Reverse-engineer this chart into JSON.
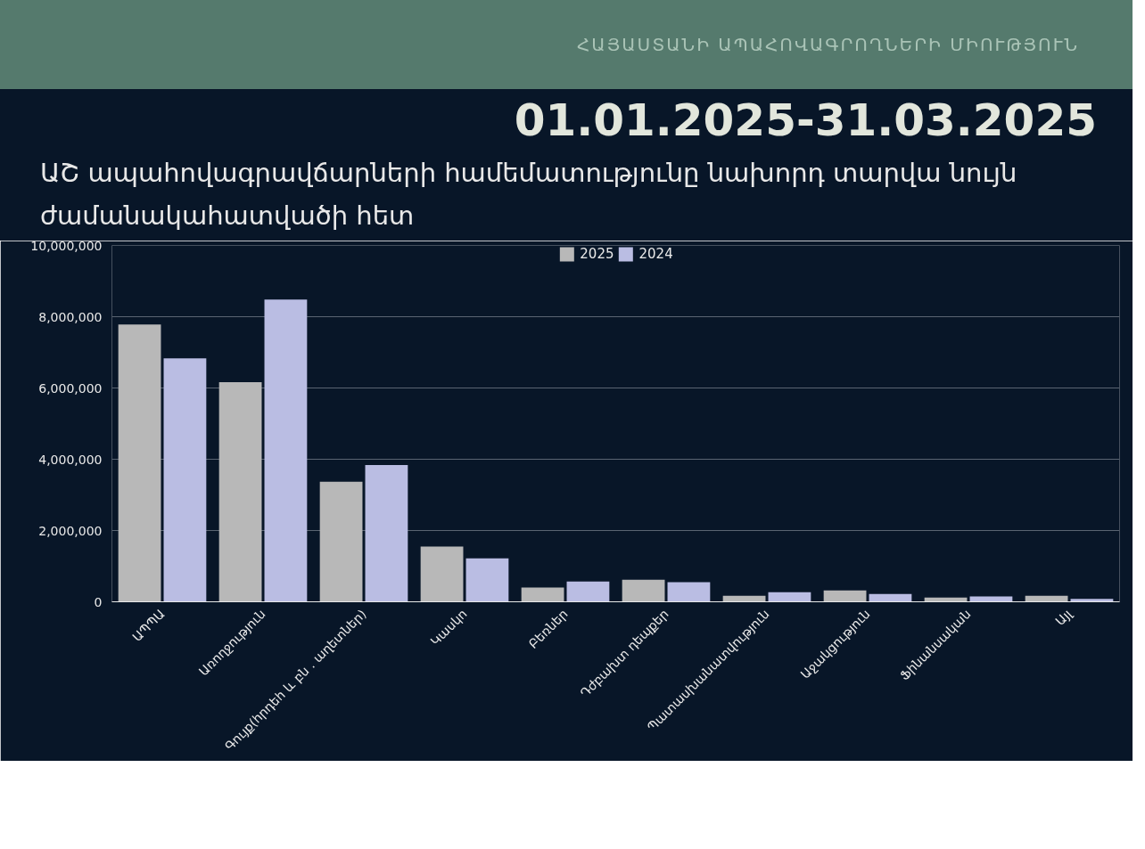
{
  "chart_data": {
    "type": "bar",
    "title": "ԱՇ ապահովագրավճարների համեմատությունը նախորդ տարվա նույն ժամանակահատվածի հետ",
    "subtitle": "01.01.2025-31.03.2025",
    "annotations": [
      "ՀԱՅԱՍՏԱՆԻ ԱՊԱՀՈՎԱԳՐՈՂՆԵՐԻ ՄԻՈՒԹՅՈՒՆ"
    ],
    "categories": [
      "ԱՊՊԱ",
      "Առողջություն",
      "Գույք(հրդեհ և բն . աղետներ)",
      "Կասկո",
      "Բեռներ",
      "Դժբախտ դեպքեր",
      "Պատասխանատվություն",
      "Աջակցություն",
      "Ֆինանսական",
      "Այլ"
    ],
    "series": [
      {
        "name": "2025",
        "color": "#b8b8b8",
        "values": [
          7780000,
          6160000,
          3370000,
          1550000,
          400000,
          620000,
          170000,
          320000,
          120000,
          170000
        ]
      },
      {
        "name": "2024",
        "color": "#babde3",
        "values": [
          6830000,
          8480000,
          3840000,
          1220000,
          570000,
          550000,
          270000,
          220000,
          150000,
          80000
        ]
      }
    ],
    "ylim": [
      0,
      10000000
    ],
    "yticks": [
      0,
      {
        "value": 2000000,
        "label": "2,000,000"
      },
      {
        "value": 4000000,
        "label": "4,000,000"
      },
      {
        "value": 6000000,
        "label": "6,000,000"
      },
      {
        "value": 8000000,
        "label": "8,000,000"
      },
      {
        "value": 10000000,
        "label": "10,000,000"
      }
    ],
    "grid": "y",
    "legend": "top"
  }
}
